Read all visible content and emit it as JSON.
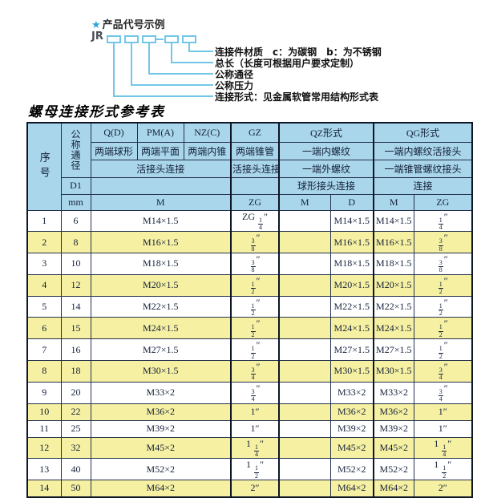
{
  "diagram": {
    "star": "★",
    "heading": "产品代号示例",
    "prefix": "JR",
    "labels": [
      "连接件材质　c：为碳钢　b：为不锈钢",
      "总长（长度可根据用户要求定制）",
      "公称通径",
      "公称压力",
      "连接形式：见金属软管常用结构形式表"
    ]
  },
  "table_title": "螺母连接形式参考表",
  "table": {
    "header": {
      "seq": "序号",
      "nominal_diameter": "公称通径",
      "d1": "D1",
      "mm": "mm",
      "col_q": "Q(D)",
      "col_pm": "PM(A)",
      "col_nz": "NZ(C)",
      "col_gz": "GZ",
      "col_qz": "QZ形式",
      "col_qg": "QG形式",
      "q_desc": "两端球形",
      "pm_desc": "两端平面",
      "nz_desc": "两端内锥",
      "gz_desc": "两端锥管",
      "qz_desc1": "一端内螺纹",
      "qg_desc1": "一端内螺纹活接头",
      "union_conn": "活接头连接",
      "gz_union_conn": "活接头连接",
      "qz_desc2": "一端外螺纹",
      "qg_desc2": "一端锥管螺纹接头",
      "qz_conn": "球形接头连接",
      "qg_conn": "连接",
      "m1": "M",
      "zg1": "ZG",
      "m2": "M",
      "d": "D",
      "m3": "M",
      "zg2": "ZG"
    },
    "rows": [
      {
        "seq": "1",
        "mm": "6",
        "m": "M14×1.5",
        "gz": "ZG 1/4″",
        "qz_m": "",
        "qz_d": "M14×1.5",
        "qg_m": "M14×1.5",
        "qg_zg": "1/4″"
      },
      {
        "seq": "2",
        "mm": "8",
        "m": "M16×1.5",
        "gz": "3/8″",
        "qz_m": "",
        "qz_d": "M16×1.5",
        "qg_m": "M16×1.5",
        "qg_zg": "3/8″"
      },
      {
        "seq": "3",
        "mm": "10",
        "m": "M18×1.5",
        "gz": "3/8″",
        "qz_m": "",
        "qz_d": "M18×1.5",
        "qg_m": "M18×1.5",
        "qg_zg": "3/8″"
      },
      {
        "seq": "4",
        "mm": "12",
        "m": "M20×1.5",
        "gz": "1/2″",
        "qz_m": "",
        "qz_d": "M20×1.5",
        "qg_m": "M20×1.5",
        "qg_zg": "1/2″"
      },
      {
        "seq": "5",
        "mm": "14",
        "m": "M22×1.5",
        "gz": "1/2″",
        "qz_m": "",
        "qz_d": "M22×1.5",
        "qg_m": "M22×1.5",
        "qg_zg": "1/2″"
      },
      {
        "seq": "6",
        "mm": "15",
        "m": "M24×1.5",
        "gz": "1/2″",
        "qz_m": "",
        "qz_d": "M24×1.5",
        "qg_m": "M24×1.5",
        "qg_zg": "1/2″"
      },
      {
        "seq": "7",
        "mm": "16",
        "m": "M27×1.5",
        "gz": "1/2″",
        "qz_m": "",
        "qz_d": "M27×1.5",
        "qg_m": "M27×1.5",
        "qg_zg": "1/2″"
      },
      {
        "seq": "8",
        "mm": "18",
        "m": "M30×1.5",
        "gz": "3/4″",
        "qz_m": "",
        "qz_d": "M30×1.5",
        "qg_m": "M30×1.5",
        "qg_zg": "3/4″"
      },
      {
        "seq": "9",
        "mm": "20",
        "m": "M33×2",
        "gz": "3/4″",
        "qz_m": "",
        "qz_d": "M33×2",
        "qg_m": "M33×2",
        "qg_zg": "3/4″"
      },
      {
        "seq": "10",
        "mm": "22",
        "m": "M36×2",
        "gz": "1″",
        "qz_m": "",
        "qz_d": "M36×2",
        "qg_m": "M36×2",
        "qg_zg": "1″"
      },
      {
        "seq": "11",
        "mm": "25",
        "m": "M39×2",
        "gz": "1″",
        "qz_m": "",
        "qz_d": "M39×2",
        "qg_m": "M39×2",
        "qg_zg": "1″"
      },
      {
        "seq": "12",
        "mm": "32",
        "m": "M45×2",
        "gz": "1 1/4″",
        "qz_m": "",
        "qz_d": "M45×2",
        "qg_m": "M45×2",
        "qg_zg": "1 1/4″"
      },
      {
        "seq": "13",
        "mm": "40",
        "m": "M52×2",
        "gz": "1 1/2″",
        "qz_m": "",
        "qz_d": "M52×2",
        "qg_m": "M52×2",
        "qg_zg": "1 1/2″"
      },
      {
        "seq": "14",
        "mm": "50",
        "m": "M64×2",
        "gz": "2″",
        "qz_m": "",
        "qz_d": "M64×2",
        "qg_m": "M64×2",
        "qg_zg": "2″"
      }
    ]
  },
  "colors": {
    "header_bg": "#a9d6ea",
    "row_alt_bg": "#f6f0a2",
    "accent_blue": "#2ba6da",
    "diagram_line": "#72c7e7",
    "border_dark": "#0d1526"
  }
}
